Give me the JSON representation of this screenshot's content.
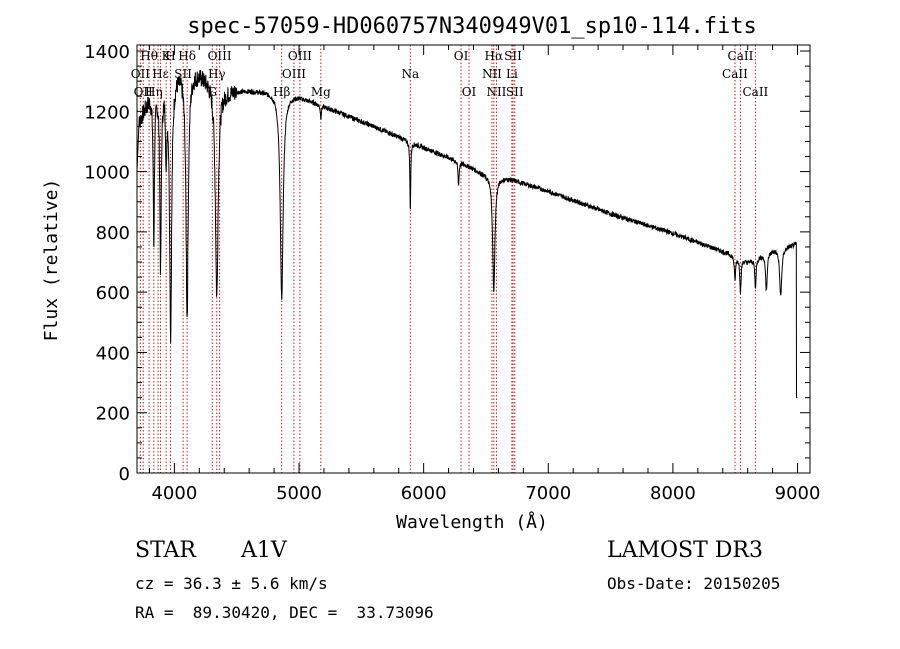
{
  "chart_data": {
    "type": "line",
    "title": "spec-57059-HD060757N340949V01_sp10-114.fits",
    "xlabel": "Wavelength (Å)",
    "ylabel": "Flux (relative)",
    "xlim": [
      3700,
      9100
    ],
    "ylim": [
      0,
      1420
    ],
    "xticks": [
      4000,
      5000,
      6000,
      7000,
      8000,
      9000
    ],
    "yticks": [
      0,
      200,
      400,
      600,
      800,
      1000,
      1200,
      1400
    ],
    "line_color": "#000000",
    "marker_color": "#b22222",
    "continuum": {
      "x": [
        3700,
        3800,
        3900,
        4000,
        4100,
        4200,
        4300,
        4400,
        4600,
        4800,
        5000,
        5300,
        5600,
        6000,
        6300,
        6500,
        6700,
        7000,
        7500,
        8000,
        8500,
        8600,
        8800,
        9000
      ],
      "y": [
        1150,
        1250,
        1300,
        1330,
        1345,
        1330,
        1300,
        1270,
        1270,
        1265,
        1250,
        1200,
        1150,
        1080,
        1030,
        990,
        975,
        935,
        860,
        795,
        720,
        700,
        740,
        760
      ]
    },
    "absorption_lines": [
      {
        "center": 3835,
        "depth": 500,
        "width": 6
      },
      {
        "center": 3889,
        "depth": 600,
        "width": 7
      },
      {
        "center": 3934,
        "depth": 250,
        "width": 5
      },
      {
        "center": 3970,
        "depth": 850,
        "width": 10
      },
      {
        "center": 4102,
        "depth": 820,
        "width": 11
      },
      {
        "center": 4340,
        "depth": 700,
        "width": 13
      },
      {
        "center": 4861,
        "depth": 680,
        "width": 14
      },
      {
        "center": 5175,
        "depth": 40,
        "width": 5
      },
      {
        "center": 5893,
        "depth": 230,
        "width": 4
      },
      {
        "center": 6280,
        "depth": 80,
        "width": 5
      },
      {
        "center": 6563,
        "depth": 380,
        "width": 11
      },
      {
        "center": 8498,
        "depth": 80,
        "width": 6
      },
      {
        "center": 8542,
        "depth": 110,
        "width": 6
      },
      {
        "center": 8662,
        "depth": 100,
        "width": 6
      },
      {
        "center": 8750,
        "depth": 120,
        "width": 8
      },
      {
        "center": 8865,
        "depth": 160,
        "width": 10
      }
    ],
    "line_markers": [
      {
        "wave": 3727,
        "label": "OII",
        "row": 1
      },
      {
        "wave": 3750,
        "label": "OII",
        "row": 2
      },
      {
        "wave": 3797,
        "label": "Hθ",
        "row": 0
      },
      {
        "wave": 3835,
        "label": "Hη",
        "row": 2
      },
      {
        "wave": 3869,
        "label": "",
        "row": -1
      },
      {
        "wave": 3889,
        "label": "Hε",
        "row": 1
      },
      {
        "wave": 3934,
        "label": "K",
        "row": 0
      },
      {
        "wave": 3969,
        "label": "H",
        "row": 0
      },
      {
        "wave": 4070,
        "label": "SII",
        "row": 1
      },
      {
        "wave": 4102,
        "label": "Hδ",
        "row": 0
      },
      {
        "wave": 4304,
        "label": "G",
        "row": 2
      },
      {
        "wave": 4340,
        "label": "Hγ",
        "row": 1
      },
      {
        "wave": 4363,
        "label": "OIII",
        "row": 0
      },
      {
        "wave": 4861,
        "label": "Hβ",
        "row": 2
      },
      {
        "wave": 4959,
        "label": "OIII",
        "row": 1
      },
      {
        "wave": 5007,
        "label": "OIII",
        "row": 0
      },
      {
        "wave": 5175,
        "label": "Mg",
        "row": 2
      },
      {
        "wave": 5893,
        "label": "Na",
        "row": 1
      },
      {
        "wave": 6300,
        "label": "OI",
        "row": 0
      },
      {
        "wave": 6364,
        "label": "OI",
        "row": 2
      },
      {
        "wave": 6548,
        "label": "NII",
        "row": 1
      },
      {
        "wave": 6563,
        "label": "Hα",
        "row": 0
      },
      {
        "wave": 6584,
        "label": "NII",
        "row": 2
      },
      {
        "wave": 6708,
        "label": "Li",
        "row": 1
      },
      {
        "wave": 6717,
        "label": "SII",
        "row": 0
      },
      {
        "wave": 6731,
        "label": "SII",
        "row": 2
      },
      {
        "wave": 8498,
        "label": "CaII",
        "row": 1
      },
      {
        "wave": 8542,
        "label": "CaII",
        "row": 0
      },
      {
        "wave": 8662,
        "label": "CaII",
        "row": 2
      }
    ]
  },
  "info": {
    "class_type": "STAR",
    "subclass": "A1V",
    "survey": "LAMOST DR3",
    "cz": "cz = 36.3 ± 5.6 km/s",
    "obs_date": "Obs-Date: 20150205",
    "coords": "RA =  89.30420, DEC =  33.73096"
  }
}
